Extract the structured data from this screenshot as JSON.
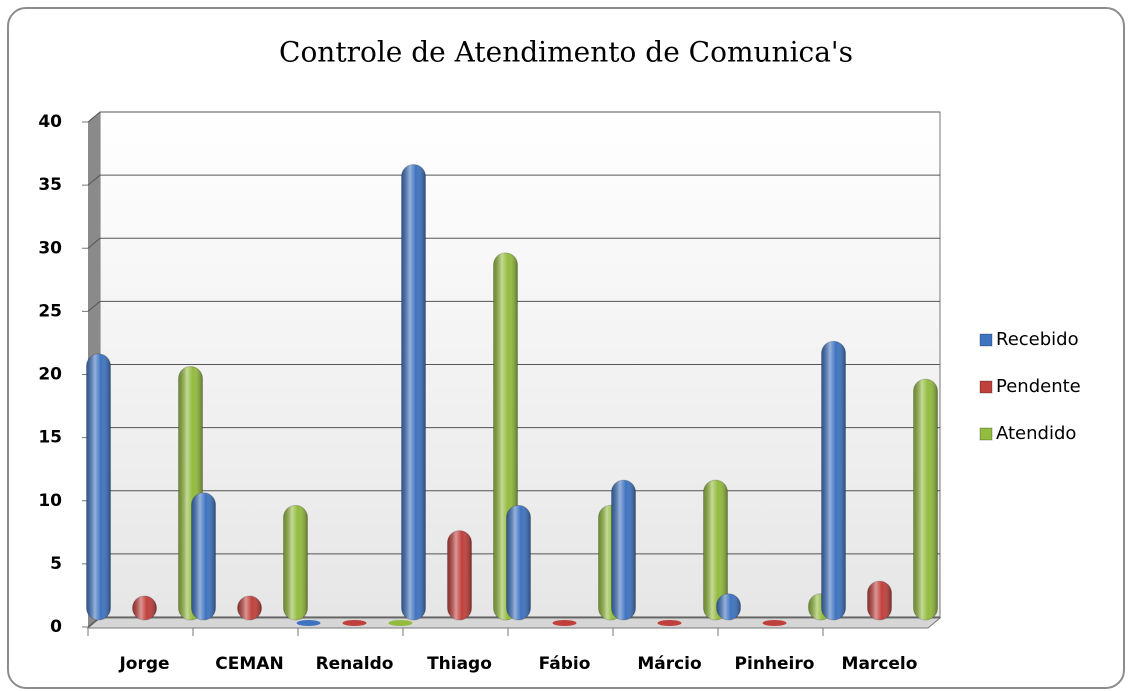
{
  "chart_data": {
    "type": "bar",
    "title": "Controle de Atendimento de Comunica's",
    "categories": [
      "Jorge",
      "CEMAN",
      "Renaldo",
      "Thiago",
      "Fábio",
      "Márcio",
      "Pinheiro",
      "Marcelo"
    ],
    "series": [
      {
        "name": "Recebido",
        "color": "#3f73c0",
        "values": [
          21,
          10,
          0,
          36,
          9,
          11,
          2,
          22
        ]
      },
      {
        "name": "Pendente",
        "color": "#c0403c",
        "values": [
          1,
          1,
          0,
          7,
          0,
          0,
          0,
          3
        ]
      },
      {
        "name": "Atendido",
        "color": "#93bb3e",
        "values": [
          20,
          9,
          0,
          29,
          9,
          11,
          2,
          19
        ]
      }
    ],
    "ylim": [
      0,
      40
    ],
    "yticks": [
      0,
      5,
      10,
      15,
      20,
      25,
      30,
      35,
      40
    ],
    "grid": true,
    "legend": "right"
  }
}
